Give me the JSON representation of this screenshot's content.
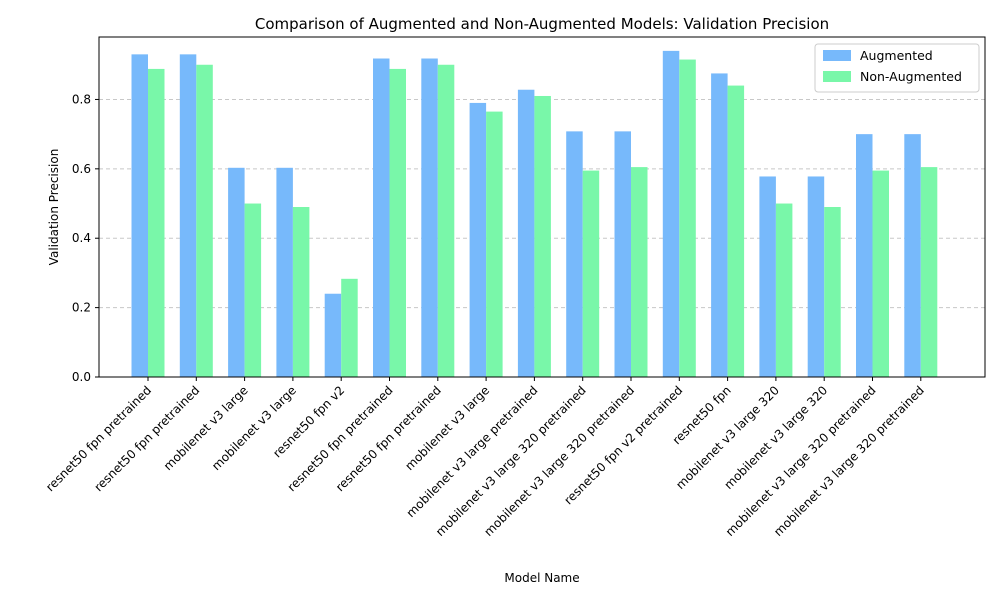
{
  "chart_data": {
    "type": "bar",
    "title": "Comparison of Augmented and Non-Augmented Models: Validation Precision",
    "xlabel": "Model Name",
    "ylabel": "Validation Precision",
    "ylim": [
      0,
      0.98
    ],
    "yticks": [
      "0.0",
      "0.2",
      "0.4",
      "0.6",
      "0.8"
    ],
    "grid": "y-dashed",
    "legend_position": "top-right",
    "categories": [
      "resnet50 fpn pretrained",
      "resnet50 fpn pretrained",
      "mobilenet v3 large",
      "mobilenet v3 large",
      "resnet50 fpn v2",
      "resnet50 fpn pretrained",
      "resnet50 fpn pretrained",
      "mobilenet v3 large",
      "mobilenet v3 large pretrained",
      "mobilenet v3 large 320 pretrained",
      "mobilenet v3 large 320 pretrained",
      "resnet50 fpn v2 pretrained",
      "resnet50 fpn",
      "mobilenet v3 large 320",
      "mobilenet v3 large 320",
      "mobilenet v3 large 320 pretrained",
      "mobilenet v3 large 320 pretrained"
    ],
    "series": [
      {
        "name": "Augmented",
        "color": "#77b9fb",
        "values": [
          0.93,
          0.93,
          0.603,
          0.603,
          0.24,
          0.918,
          0.918,
          0.79,
          0.828,
          0.708,
          0.708,
          0.94,
          0.875,
          0.578,
          0.578,
          0.7,
          0.7
        ]
      },
      {
        "name": "Non-Augmented",
        "color": "#79f7a9",
        "values": [
          0.888,
          0.9,
          0.5,
          0.49,
          0.283,
          0.888,
          0.9,
          0.765,
          0.81,
          0.595,
          0.605,
          0.915,
          0.84,
          0.5,
          0.49,
          0.595,
          0.605
        ]
      }
    ]
  }
}
